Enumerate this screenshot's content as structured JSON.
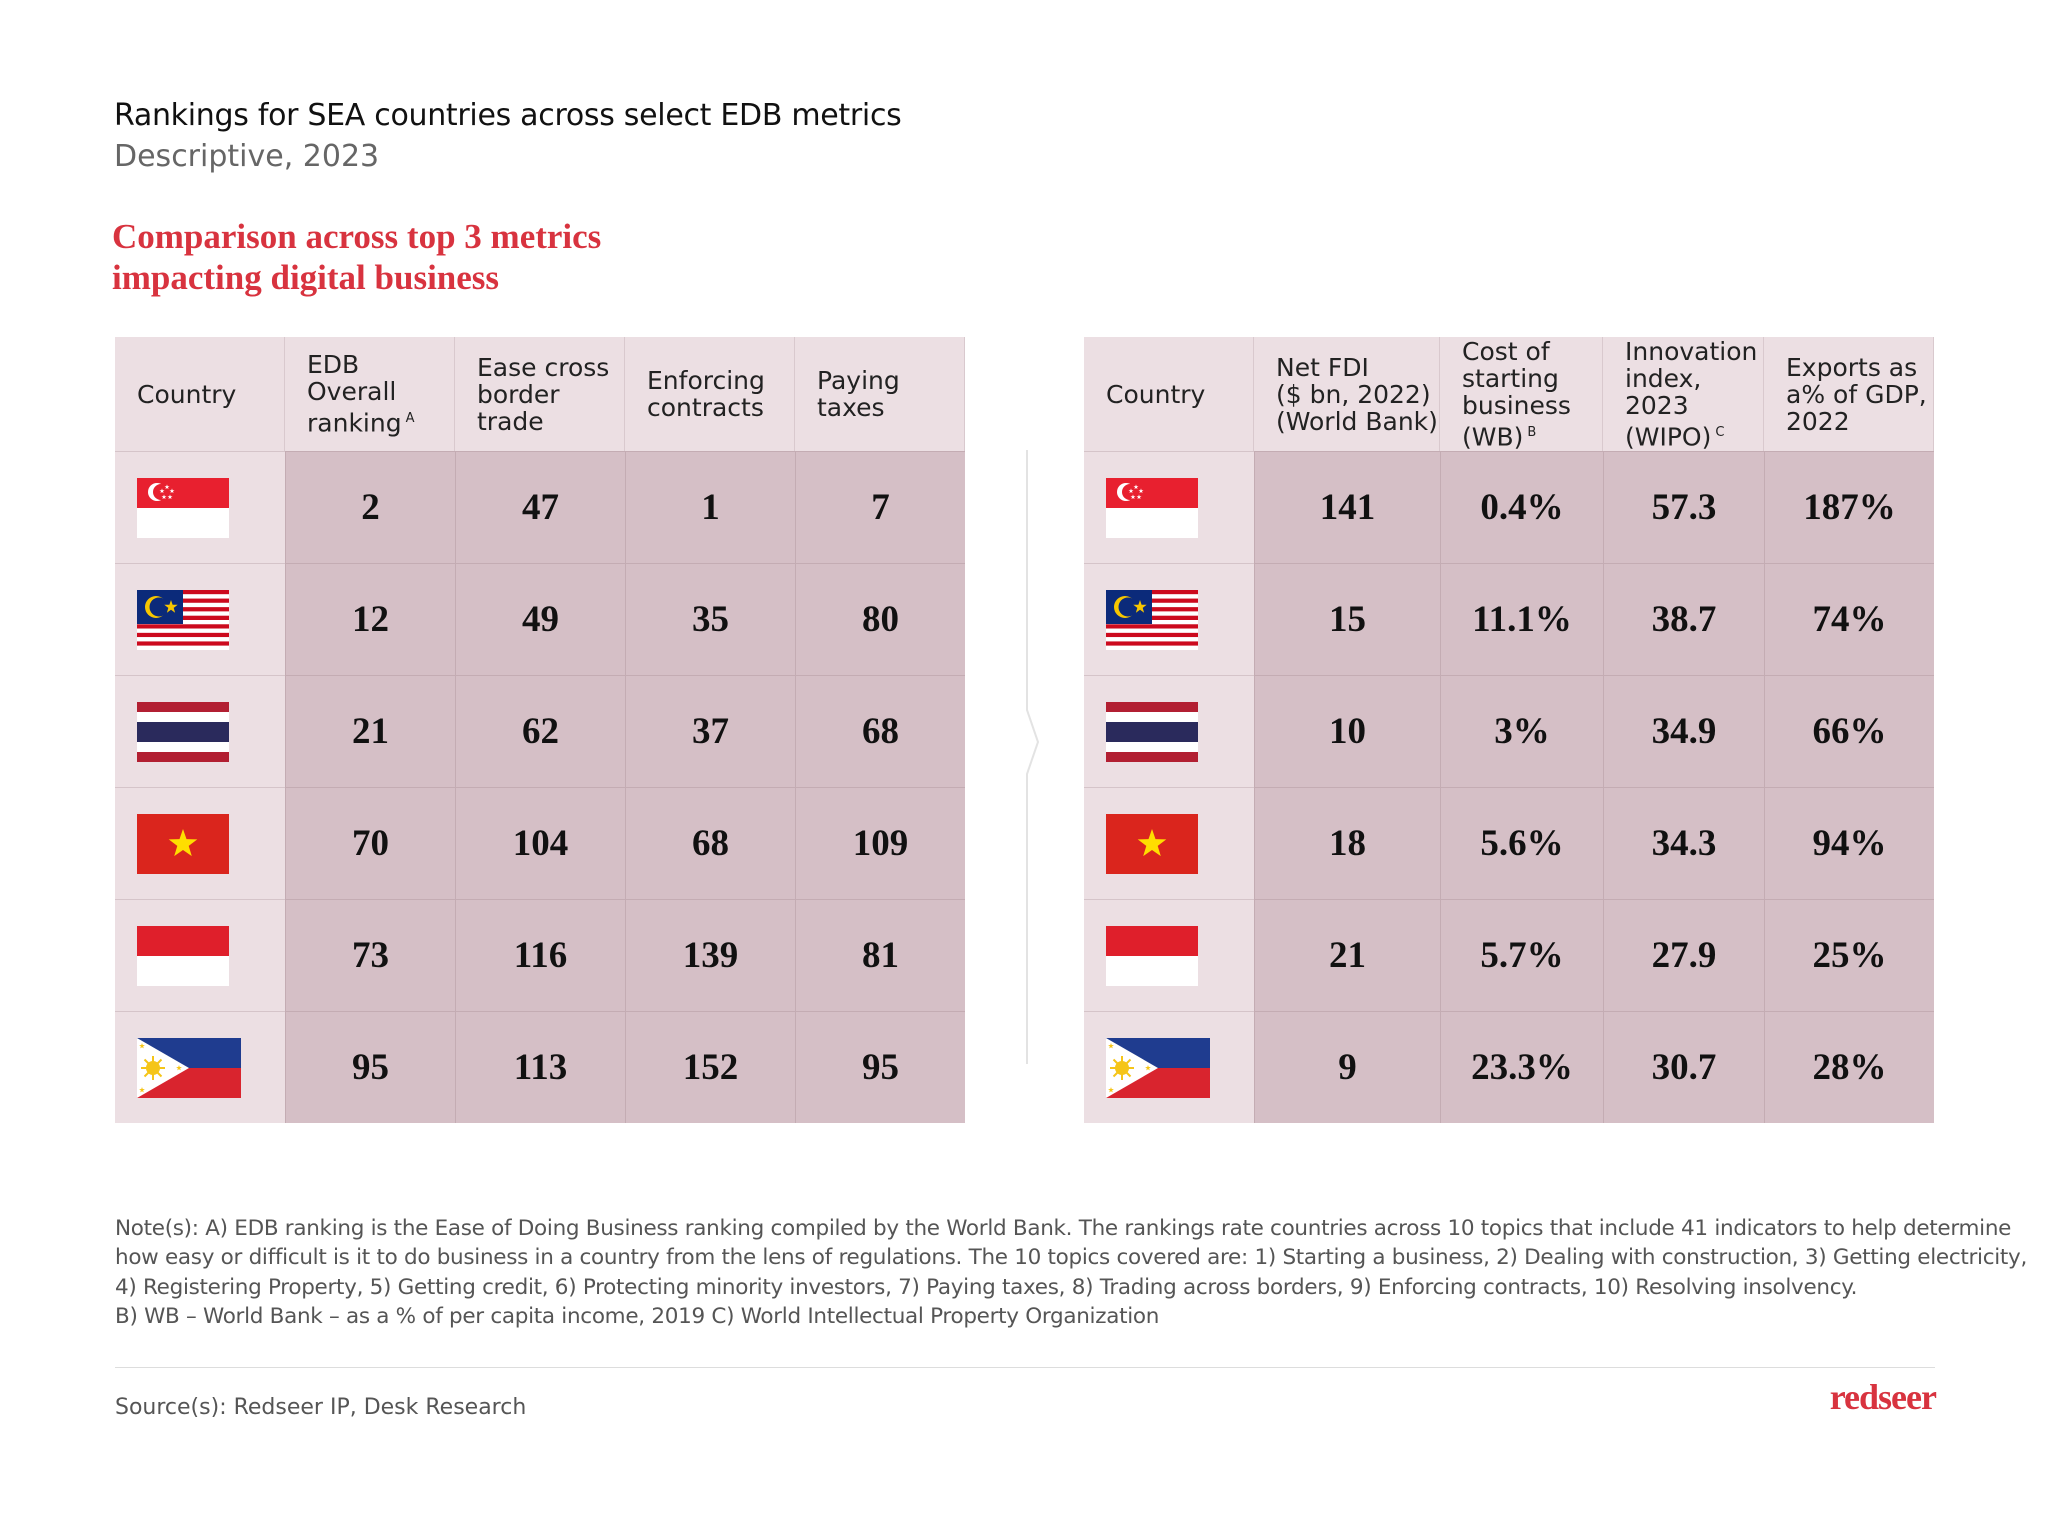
{
  "header": {
    "title": "Rankings for SEA countries across select EDB metrics",
    "subtitle": "Descriptive, 2023"
  },
  "section_title": {
    "lines": [
      "Comparison across top 3 metrics",
      "impacting digital business"
    ]
  },
  "table_left": {
    "headers": [
      {
        "lines": [
          "Country"
        ]
      },
      {
        "lines": [
          "EDB",
          "Overall",
          "ranking"
        ],
        "sup": "A"
      },
      {
        "lines": [
          "Ease cross",
          "border",
          "trade"
        ]
      },
      {
        "lines": [
          "Enforcing",
          "contracts"
        ]
      },
      {
        "lines": [
          "Paying",
          "taxes"
        ]
      }
    ],
    "rows": [
      [
        "2",
        "47",
        "1",
        "7"
      ],
      [
        "12",
        "49",
        "35",
        "80"
      ],
      [
        "21",
        "62",
        "37",
        "68"
      ],
      [
        "70",
        "104",
        "68",
        "109"
      ],
      [
        "73",
        "116",
        "139",
        "81"
      ],
      [
        "95",
        "113",
        "152",
        "95"
      ]
    ]
  },
  "table_right": {
    "headers": [
      {
        "lines": [
          "Country"
        ]
      },
      {
        "lines": [
          "Net FDI",
          "($ bn, 2022)",
          "(World Bank)"
        ]
      },
      {
        "lines": [
          "Cost of",
          "starting",
          "business",
          "(WB)"
        ],
        "sup": "B"
      },
      {
        "lines": [
          "Innovation",
          "index, 2023",
          "(WIPO)"
        ],
        "sup": "C"
      },
      {
        "lines": [
          "Exports as",
          "a% of GDP,",
          "2022"
        ]
      }
    ],
    "rows": [
      [
        "141",
        "0.4%",
        "57.3",
        "187%"
      ],
      [
        "15",
        "11.1%",
        "38.7",
        "74%"
      ],
      [
        "10",
        "3%",
        "34.9",
        "66%"
      ],
      [
        "18",
        "5.6%",
        "34.3",
        "94%"
      ],
      [
        "21",
        "5.7%",
        "27.9",
        "25%"
      ],
      [
        "9",
        "23.3%",
        "30.7",
        "28%"
      ]
    ]
  },
  "notes": {
    "lines": [
      "Note(s): A) EDB ranking is the Ease of Doing Business ranking compiled by the World Bank. The rankings rate countries across 10 topics that include 41 indicators to help determine",
      "how easy or difficult is it to do business in a country from the lens of regulations. The 10 topics covered are: 1) Starting a business, 2) Dealing with construction, 3) Getting electricity,",
      "4) Registering Property, 5) Getting credit, 6) Protecting minority investors, 7) Paying taxes, 8) Trading across borders, 9) Enforcing contracts, 10) Resolving insolvency.",
      "B) WB – World Bank – as a % of per capita income, 2019  C) World Intellectual Property Organization"
    ]
  },
  "footer": {
    "source": "Source(s): Redseer IP, Desk Research",
    "logo": "redseer"
  }
}
